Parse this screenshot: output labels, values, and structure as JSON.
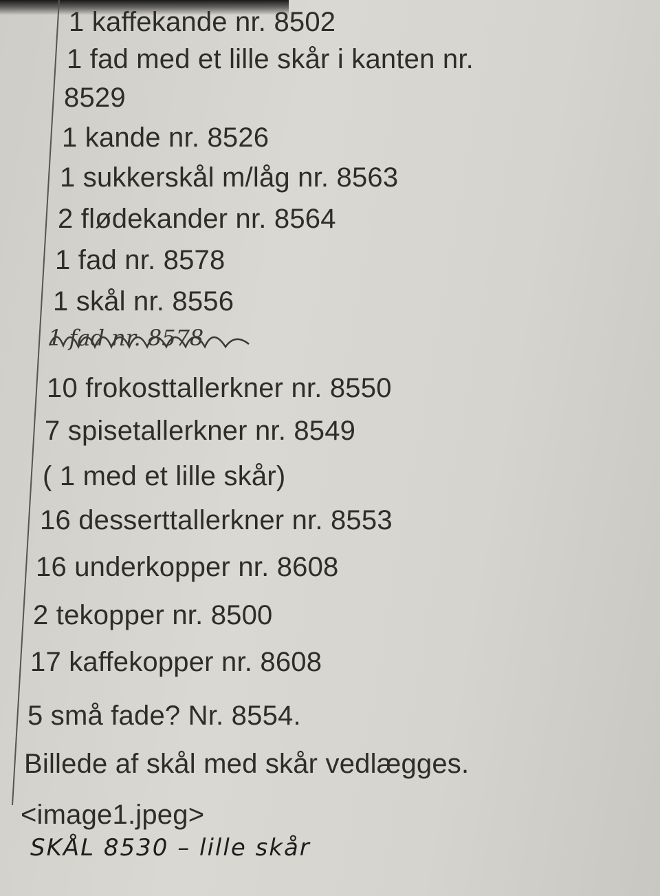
{
  "document": {
    "lines": [
      "1 kaffekande nr. 8502",
      "1 fad med et lille skår i kanten nr.",
      "8529",
      "1 kande nr. 8526",
      "1 sukkerskål m/låg nr. 8563",
      "2 flødekander nr. 8564",
      "1 fad nr. 8578",
      "1 skål nr. 8556",
      "10 frokosttallerkner nr. 8550",
      "7 spisetallerkner nr. 8549",
      "( 1 med et lille skår)",
      "16 desserttallerkner nr. 8553",
      "16 underkopper nr. 8608",
      "2 tekopper nr. 8500",
      "17 kaffekopper nr. 8608",
      "5 små fade? Nr. 8554.",
      "Billede af skål med skår vedlægges.",
      "<image1.jpeg>"
    ],
    "crossed_out_line": "1 fad nr. 8578",
    "handwritten_note": "SKÅL 8530 – lille skår"
  }
}
